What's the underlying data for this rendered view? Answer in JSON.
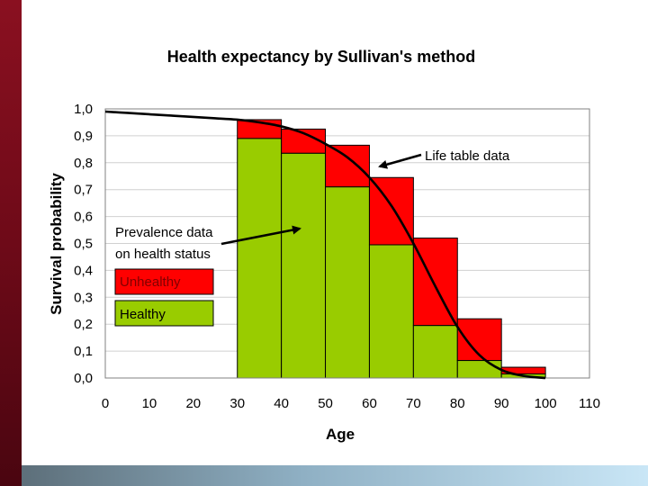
{
  "chart_data": {
    "type": "bar",
    "title": "Health expectancy by Sullivan's method",
    "xlabel": "Age",
    "ylabel": "Survival probability",
    "xlim": [
      0,
      110
    ],
    "ylim": [
      0,
      1
    ],
    "x_ticks": [
      "0",
      "10",
      "20",
      "30",
      "40",
      "50",
      "60",
      "70",
      "80",
      "90",
      "100",
      "110"
    ],
    "y_ticks": [
      "0,0",
      "0,1",
      "0,2",
      "0,3",
      "0,4",
      "0,5",
      "0,6",
      "0,7",
      "0,8",
      "0,9",
      "1,0"
    ],
    "grid": true,
    "bins": [
      {
        "x_start": 30,
        "x_end": 40,
        "healthy": 0.89,
        "total": 0.96
      },
      {
        "x_start": 40,
        "x_end": 50,
        "healthy": 0.835,
        "total": 0.925
      },
      {
        "x_start": 50,
        "x_end": 60,
        "healthy": 0.71,
        "total": 0.865
      },
      {
        "x_start": 60,
        "x_end": 70,
        "healthy": 0.495,
        "total": 0.745
      },
      {
        "x_start": 70,
        "x_end": 80,
        "healthy": 0.195,
        "total": 0.52
      },
      {
        "x_start": 80,
        "x_end": 90,
        "healthy": 0.065,
        "total": 0.22
      },
      {
        "x_start": 90,
        "x_end": 100,
        "healthy": 0.015,
        "total": 0.04
      }
    ],
    "series": [
      {
        "name": "Healthy",
        "color": "#99cc00"
      },
      {
        "name": "Unhealthy",
        "color": "#ff0000"
      }
    ],
    "survival_curve": {
      "x": [
        0,
        5,
        10,
        15,
        20,
        25,
        30,
        35,
        40,
        45,
        50,
        55,
        60,
        65,
        70,
        75,
        80,
        85,
        90,
        95,
        100
      ],
      "y": [
        0.99,
        0.985,
        0.98,
        0.975,
        0.97,
        0.965,
        0.96,
        0.95,
        0.935,
        0.91,
        0.87,
        0.82,
        0.745,
        0.64,
        0.5,
        0.34,
        0.19,
        0.085,
        0.03,
        0.008,
        0.0
      ]
    },
    "annotations": {
      "life_table": "Life table data",
      "prevalence_line1": "Prevalence data",
      "prevalence_line2": "on health status"
    },
    "legend_position": "left"
  }
}
